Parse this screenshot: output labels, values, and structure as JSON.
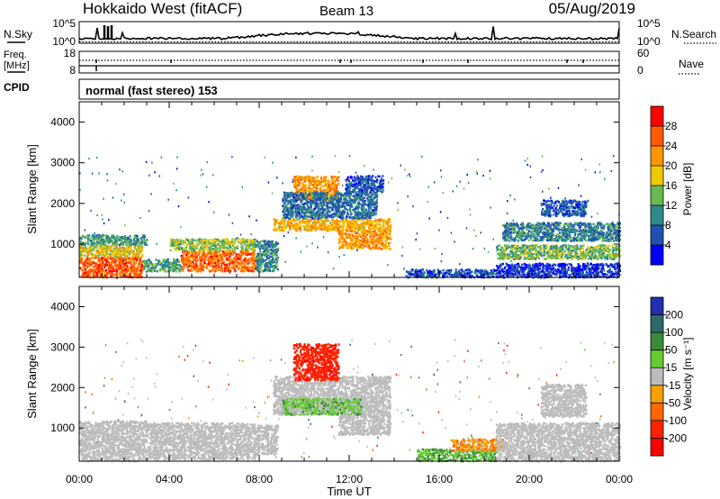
{
  "header": {
    "title": "Hokkaido West (fitACF)",
    "beam": "Beam 13",
    "date": "05/Aug/2019"
  },
  "noise_panel": {
    "left_label": "N.Sky",
    "right_label": "N.Search",
    "left_ticks": [
      "10^5",
      "10^0"
    ],
    "right_ticks": [
      "10^5",
      "10^0"
    ]
  },
  "freq_panel": {
    "left_label_line1": "Freq.",
    "left_label_line2": "[MHz]",
    "right_label": "Nave",
    "left_ticks": [
      "18",
      "8"
    ],
    "right_ticks": [
      "60",
      "0"
    ]
  },
  "cpid": {
    "label": "CPID",
    "text": "normal (fast stereo) 153"
  },
  "time_axis": {
    "xlabel": "Time UT",
    "ticks": [
      "00:00",
      "04:00",
      "08:00",
      "12:00",
      "16:00",
      "20:00",
      "00:00"
    ]
  },
  "chart_data": [
    {
      "type": "heatmap",
      "name": "power",
      "ylabel": "Slant Range [km]",
      "yticks": [
        "1000",
        "2000",
        "3000",
        "4000"
      ],
      "ylim": [
        180,
        4500
      ],
      "xlim_hours": [
        0,
        24
      ],
      "colorbar_label": "Power [dB]",
      "colorbar_ticks": [
        "28",
        "24",
        "20",
        "16",
        "12",
        "8",
        "4"
      ],
      "colorbar_colors": [
        "#ff0000",
        "#ff5a00",
        "#ff9600",
        "#f0c800",
        "#6ab850",
        "#2c8a8a",
        "#2050b0",
        "#0000ff"
      ],
      "regions": [
        {
          "t": [
            0.0,
            2.8
          ],
          "r": [
            200,
            700
          ],
          "level": 26
        },
        {
          "t": [
            0.0,
            2.8
          ],
          "r": [
            700,
            1000
          ],
          "level": 18
        },
        {
          "t": [
            0.0,
            3.0
          ],
          "r": [
            1000,
            1250
          ],
          "level": 11
        },
        {
          "t": [
            2.8,
            4.5
          ],
          "r": [
            350,
            650
          ],
          "level": 12
        },
        {
          "t": [
            4.5,
            7.8
          ],
          "r": [
            350,
            850
          ],
          "level": 25
        },
        {
          "t": [
            4.0,
            7.8
          ],
          "r": [
            850,
            1150
          ],
          "level": 15
        },
        {
          "t": [
            7.8,
            8.8
          ],
          "r": [
            350,
            1100
          ],
          "level": 10
        },
        {
          "t": [
            8.6,
            13.8
          ],
          "r": [
            1350,
            1650
          ],
          "level": 20
        },
        {
          "t": [
            11.5,
            13.8
          ],
          "r": [
            900,
            1350
          ],
          "level": 22
        },
        {
          "t": [
            9.5,
            11.5
          ],
          "r": [
            2100,
            2700
          ],
          "level": 22
        },
        {
          "t": [
            9.0,
            13.2
          ],
          "r": [
            1650,
            2300
          ],
          "level": 8
        },
        {
          "t": [
            11.8,
            13.5
          ],
          "r": [
            2300,
            2700
          ],
          "level": 6
        },
        {
          "t": [
            14.5,
            18.5
          ],
          "r": [
            200,
            400
          ],
          "level": 6
        },
        {
          "t": [
            18.5,
            24.0
          ],
          "r": [
            200,
            550
          ],
          "level": 4
        },
        {
          "t": [
            18.5,
            24.0
          ],
          "r": [
            650,
            1000
          ],
          "level": 14
        },
        {
          "t": [
            18.8,
            24.0
          ],
          "r": [
            1100,
            1550
          ],
          "level": 9
        },
        {
          "t": [
            20.5,
            22.5
          ],
          "r": [
            1700,
            2100
          ],
          "level": 6
        }
      ]
    },
    {
      "type": "heatmap",
      "name": "velocity",
      "ylabel": "Slant Range [km]",
      "yticks": [
        "1000",
        "2000",
        "3000",
        "4000"
      ],
      "ylim": [
        180,
        4500
      ],
      "xlim_hours": [
        0,
        24
      ],
      "colorbar_label": "Velocity [m s⁻¹]",
      "colorbar_ticks": [
        "200",
        "100",
        "50",
        "15",
        "-15",
        "-50",
        "-100",
        "-200"
      ],
      "colorbar_colors": [
        "#2030b0",
        "#2c6a6a",
        "#3c8a3c",
        "#66cc33",
        "#bcbcbc",
        "#f5a000",
        "#ff6600",
        "#ff2200",
        "#ff0000"
      ],
      "regions": [
        {
          "t": [
            0.0,
            3.0
          ],
          "r": [
            200,
            1200
          ],
          "level": 0
        },
        {
          "t": [
            3.0,
            7.8
          ],
          "r": [
            250,
            1150
          ],
          "level": 0
        },
        {
          "t": [
            7.8,
            8.8
          ],
          "r": [
            350,
            1100
          ],
          "level": 0
        },
        {
          "t": [
            8.6,
            13.8
          ],
          "r": [
            1350,
            2300
          ],
          "level": 0
        },
        {
          "t": [
            11.5,
            13.8
          ],
          "r": [
            850,
            1350
          ],
          "level": 0
        },
        {
          "t": [
            9.5,
            11.5
          ],
          "r": [
            2200,
            3100
          ],
          "level": -180
        },
        {
          "t": [
            9.0,
            12.5
          ],
          "r": [
            1350,
            1750
          ],
          "level": 30
        },
        {
          "t": [
            15.0,
            18.5
          ],
          "r": [
            200,
            500
          ],
          "level": 40
        },
        {
          "t": [
            16.5,
            18.8
          ],
          "r": [
            450,
            750
          ],
          "level": -40
        },
        {
          "t": [
            18.5,
            24.0
          ],
          "r": [
            200,
            1150
          ],
          "level": 0
        },
        {
          "t": [
            20.5,
            22.5
          ],
          "r": [
            1300,
            2100
          ],
          "level": 0
        }
      ]
    }
  ],
  "palette": {
    "frame": "#000000",
    "background": "#ffffff"
  }
}
